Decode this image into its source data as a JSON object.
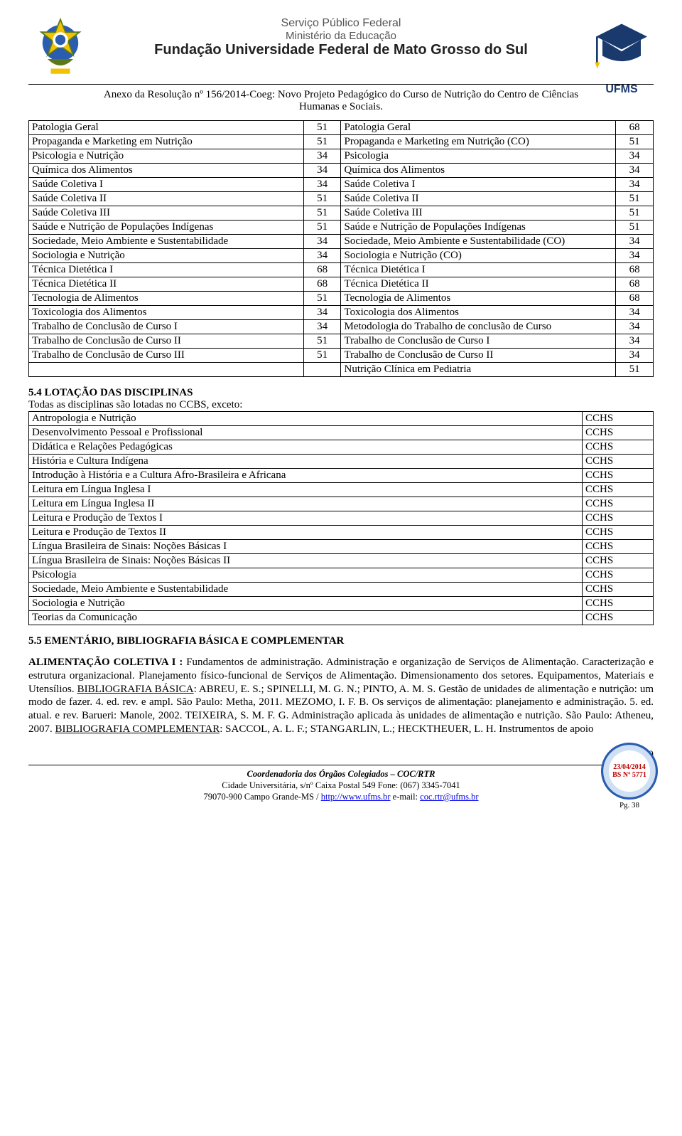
{
  "header": {
    "line1": "Serviço Público Federal",
    "line2": "Ministério da Educação",
    "line3": "Fundação Universidade Federal de Mato Grosso do Sul",
    "ufms": "UFMS"
  },
  "annex": {
    "line1": "Anexo da Resolução nº 156/2014-Coeg: Novo Projeto Pedagógico do Curso de Nutrição do Centro de Ciências",
    "line2": "Humanas e Sociais."
  },
  "table1": {
    "rows": [
      [
        "Patologia Geral",
        "51",
        "Patologia Geral",
        "68"
      ],
      [
        "Propaganda e Marketing em Nutrição",
        "51",
        "Propaganda e Marketing em Nutrição (CO)",
        "51"
      ],
      [
        "Psicologia e Nutrição",
        "34",
        "Psicologia",
        "34"
      ],
      [
        "Química dos Alimentos",
        "34",
        "Química dos Alimentos",
        "34"
      ],
      [
        "Saúde Coletiva I",
        "34",
        "Saúde Coletiva I",
        "34"
      ],
      [
        "Saúde Coletiva II",
        "51",
        "Saúde Coletiva II",
        "51"
      ],
      [
        "Saúde Coletiva III",
        "51",
        "Saúde Coletiva III",
        "51"
      ],
      [
        "Saúde e Nutrição de Populações Indígenas",
        "51",
        "Saúde e Nutrição de Populações Indígenas",
        "51"
      ],
      [
        "Sociedade, Meio Ambiente e Sustentabilidade",
        "34",
        "Sociedade, Meio Ambiente e Sustentabilidade (CO)",
        "34"
      ],
      [
        "Sociologia e Nutrição",
        "34",
        "Sociologia e Nutrição (CO)",
        "34"
      ],
      [
        "Técnica Dietética I",
        "68",
        "Técnica Dietética I",
        "68"
      ],
      [
        "Técnica Dietética II",
        "68",
        "Técnica Dietética II",
        "68"
      ],
      [
        "Tecnologia de Alimentos",
        "51",
        "Tecnologia de Alimentos",
        "68"
      ],
      [
        "Toxicologia dos Alimentos",
        "34",
        "Toxicologia dos Alimentos",
        "34"
      ],
      [
        "Trabalho de Conclusão de Curso I",
        "34",
        "Metodologia do Trabalho de conclusão de Curso",
        "34"
      ],
      [
        "Trabalho de Conclusão de Curso II",
        "51",
        "Trabalho de Conclusão de Curso I",
        "34"
      ],
      [
        "Trabalho de Conclusão de Curso III",
        "51",
        "Trabalho de Conclusão de Curso II",
        "34"
      ],
      [
        "",
        "",
        "Nutrição Clínica em Pediatria",
        "51"
      ]
    ]
  },
  "section54": {
    "title": "5.4 LOTAÇÃO DAS DISCIPLINAS",
    "note": "Todas as disciplinas são lotadas no CCBS, exceto:"
  },
  "table2": {
    "rows": [
      [
        "Antropologia e Nutrição",
        "CCHS"
      ],
      [
        "Desenvolvimento Pessoal e Profissional",
        "CCHS"
      ],
      [
        "Didática e Relações Pedagógicas",
        "CCHS"
      ],
      [
        "História e Cultura Indígena",
        "CCHS"
      ],
      [
        "Introdução à História e a Cultura Afro-Brasileira e Africana",
        "CCHS"
      ],
      [
        "Leitura em Língua Inglesa I",
        "CCHS"
      ],
      [
        "Leitura em Língua Inglesa II",
        "CCHS"
      ],
      [
        "Leitura e Produção de Textos I",
        "CCHS"
      ],
      [
        "Leitura e Produção de Textos II",
        "CCHS"
      ],
      [
        "Língua Brasileira de Sinais: Noções Básicas I",
        "CCHS"
      ],
      [
        "Língua Brasileira de Sinais: Noções Básicas II",
        "CCHS"
      ],
      [
        "Psicologia",
        "CCHS"
      ],
      [
        "Sociedade, Meio Ambiente e Sustentabilidade",
        "CCHS"
      ],
      [
        "Sociologia e Nutrição",
        "CCHS"
      ],
      [
        "Teorias da Comunicação",
        "CCHS"
      ]
    ]
  },
  "section55": {
    "title": "5.5 EMENTÁRIO, BIBLIOGRAFIA BÁSICA E COMPLEMENTAR",
    "lead_bold": "ALIMENTAÇÃO COLETIVA I :",
    "body1": " Fundamentos de administração. Administração e organização de Serviços de Alimentação. Caracterização e estrutura organizacional. Planejamento físico-funcional de Serviços de Alimentação. Dimensionamento dos setores. Equipamentos, Materiais e Utensílios. ",
    "bib_basica_label": "BIBLIOGRAFIA BÁSICA",
    "body2": ": ABREU, E. S.; SPINELLI, M. G. N.; PINTO, A. M. S. Gestão de unidades de alimentação e nutrição: um modo de fazer. 4. ed. rev. e ampl. São Paulo: Metha, 2011. MEZOMO, I. F. B. Os serviços de alimentação: planejamento e administração. 5. ed. atual. e rev. Barueri: Manole, 2002. TEIXEIRA, S. M. F. G. Administração aplicada às unidades de alimentação e nutrição. São Paulo: Atheneu, 2007. ",
    "bib_compl_label": "BIBLIOGRAFIA COMPLEMENTAR",
    "body3": ": SACCOL, A. L. F.; STANGARLIN, L.; HECKTHEUER, L. H. Instrumentos de apoio"
  },
  "footer": {
    "line1_i": "Coordenadoria dos Órgãos Colegiados – COC/RTR",
    "line2": "Cidade Universitária, s/nº   Caixa Postal 549  Fone: (067) 3345-7041",
    "line3a": "79070-900 Campo Grande-MS  / ",
    "link1": "http://www.ufms.br",
    "line3b": "  e-mail: ",
    "link2": "coc.rtr@ufms.br",
    "pagenum": "19",
    "stamp_date": "23/04/2014",
    "stamp_bs": "BS Nº 5771",
    "stamp_pg": "Pg. 38"
  }
}
